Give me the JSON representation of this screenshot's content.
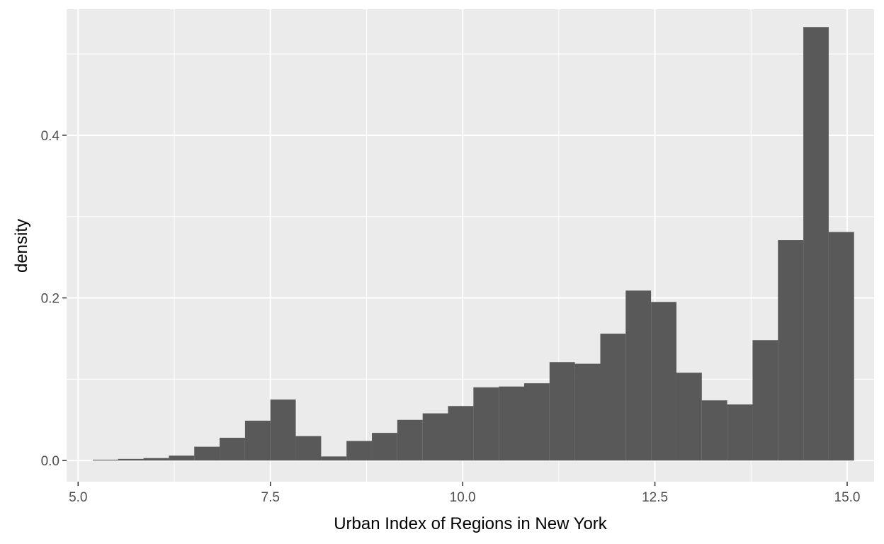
{
  "chart_data": {
    "type": "bar",
    "title": "",
    "xlabel": "Urban Index of Regions in New York",
    "ylabel": "density",
    "xlim": [
      4.85,
      15.35
    ],
    "ylim": [
      -0.026,
      0.555
    ],
    "x_ticks": [
      5.0,
      7.5,
      10.0,
      12.5,
      15.0
    ],
    "x_tick_labels": [
      "5.0",
      "7.5",
      "10.0",
      "12.5",
      "15.0"
    ],
    "y_ticks": [
      0.0,
      0.2,
      0.4
    ],
    "y_tick_labels": [
      "0.0",
      "0.2",
      "0.4"
    ],
    "grid": true,
    "bin_width": 0.33,
    "bins": [
      {
        "x0": 5.19,
        "x1": 5.52,
        "density": 0.001
      },
      {
        "x0": 5.52,
        "x1": 5.85,
        "density": 0.002
      },
      {
        "x0": 5.85,
        "x1": 6.18,
        "density": 0.003
      },
      {
        "x0": 6.18,
        "x1": 6.51,
        "density": 0.006
      },
      {
        "x0": 6.51,
        "x1": 6.84,
        "density": 0.017
      },
      {
        "x0": 6.84,
        "x1": 7.17,
        "density": 0.028
      },
      {
        "x0": 7.17,
        "x1": 7.5,
        "density": 0.049
      },
      {
        "x0": 7.5,
        "x1": 7.83,
        "density": 0.075
      },
      {
        "x0": 7.83,
        "x1": 8.16,
        "density": 0.03
      },
      {
        "x0": 8.16,
        "x1": 8.49,
        "density": 0.005
      },
      {
        "x0": 8.49,
        "x1": 8.82,
        "density": 0.024
      },
      {
        "x0": 8.82,
        "x1": 9.15,
        "density": 0.034
      },
      {
        "x0": 9.15,
        "x1": 9.48,
        "density": 0.05
      },
      {
        "x0": 9.48,
        "x1": 9.81,
        "density": 0.058
      },
      {
        "x0": 9.81,
        "x1": 10.14,
        "density": 0.067
      },
      {
        "x0": 10.14,
        "x1": 10.47,
        "density": 0.09
      },
      {
        "x0": 10.47,
        "x1": 10.8,
        "density": 0.091
      },
      {
        "x0": 10.8,
        "x1": 11.13,
        "density": 0.095
      },
      {
        "x0": 11.13,
        "x1": 11.46,
        "density": 0.121
      },
      {
        "x0": 11.46,
        "x1": 11.79,
        "density": 0.119
      },
      {
        "x0": 11.79,
        "x1": 12.12,
        "density": 0.156
      },
      {
        "x0": 12.12,
        "x1": 12.45,
        "density": 0.209
      },
      {
        "x0": 12.45,
        "x1": 12.78,
        "density": 0.195
      },
      {
        "x0": 12.78,
        "x1": 13.11,
        "density": 0.108
      },
      {
        "x0": 13.11,
        "x1": 13.44,
        "density": 0.074
      },
      {
        "x0": 13.44,
        "x1": 13.77,
        "density": 0.069
      },
      {
        "x0": 13.77,
        "x1": 14.1,
        "density": 0.148
      },
      {
        "x0": 14.1,
        "x1": 14.43,
        "density": 0.271
      },
      {
        "x0": 14.43,
        "x1": 14.76,
        "density": 0.533
      },
      {
        "x0": 14.76,
        "x1": 15.09,
        "density": 0.281
      }
    ],
    "colors": {
      "panel_background": "#ebebeb",
      "grid_major": "#ffffff",
      "bar_fill": "#595959",
      "tick_color": "#333333"
    }
  }
}
